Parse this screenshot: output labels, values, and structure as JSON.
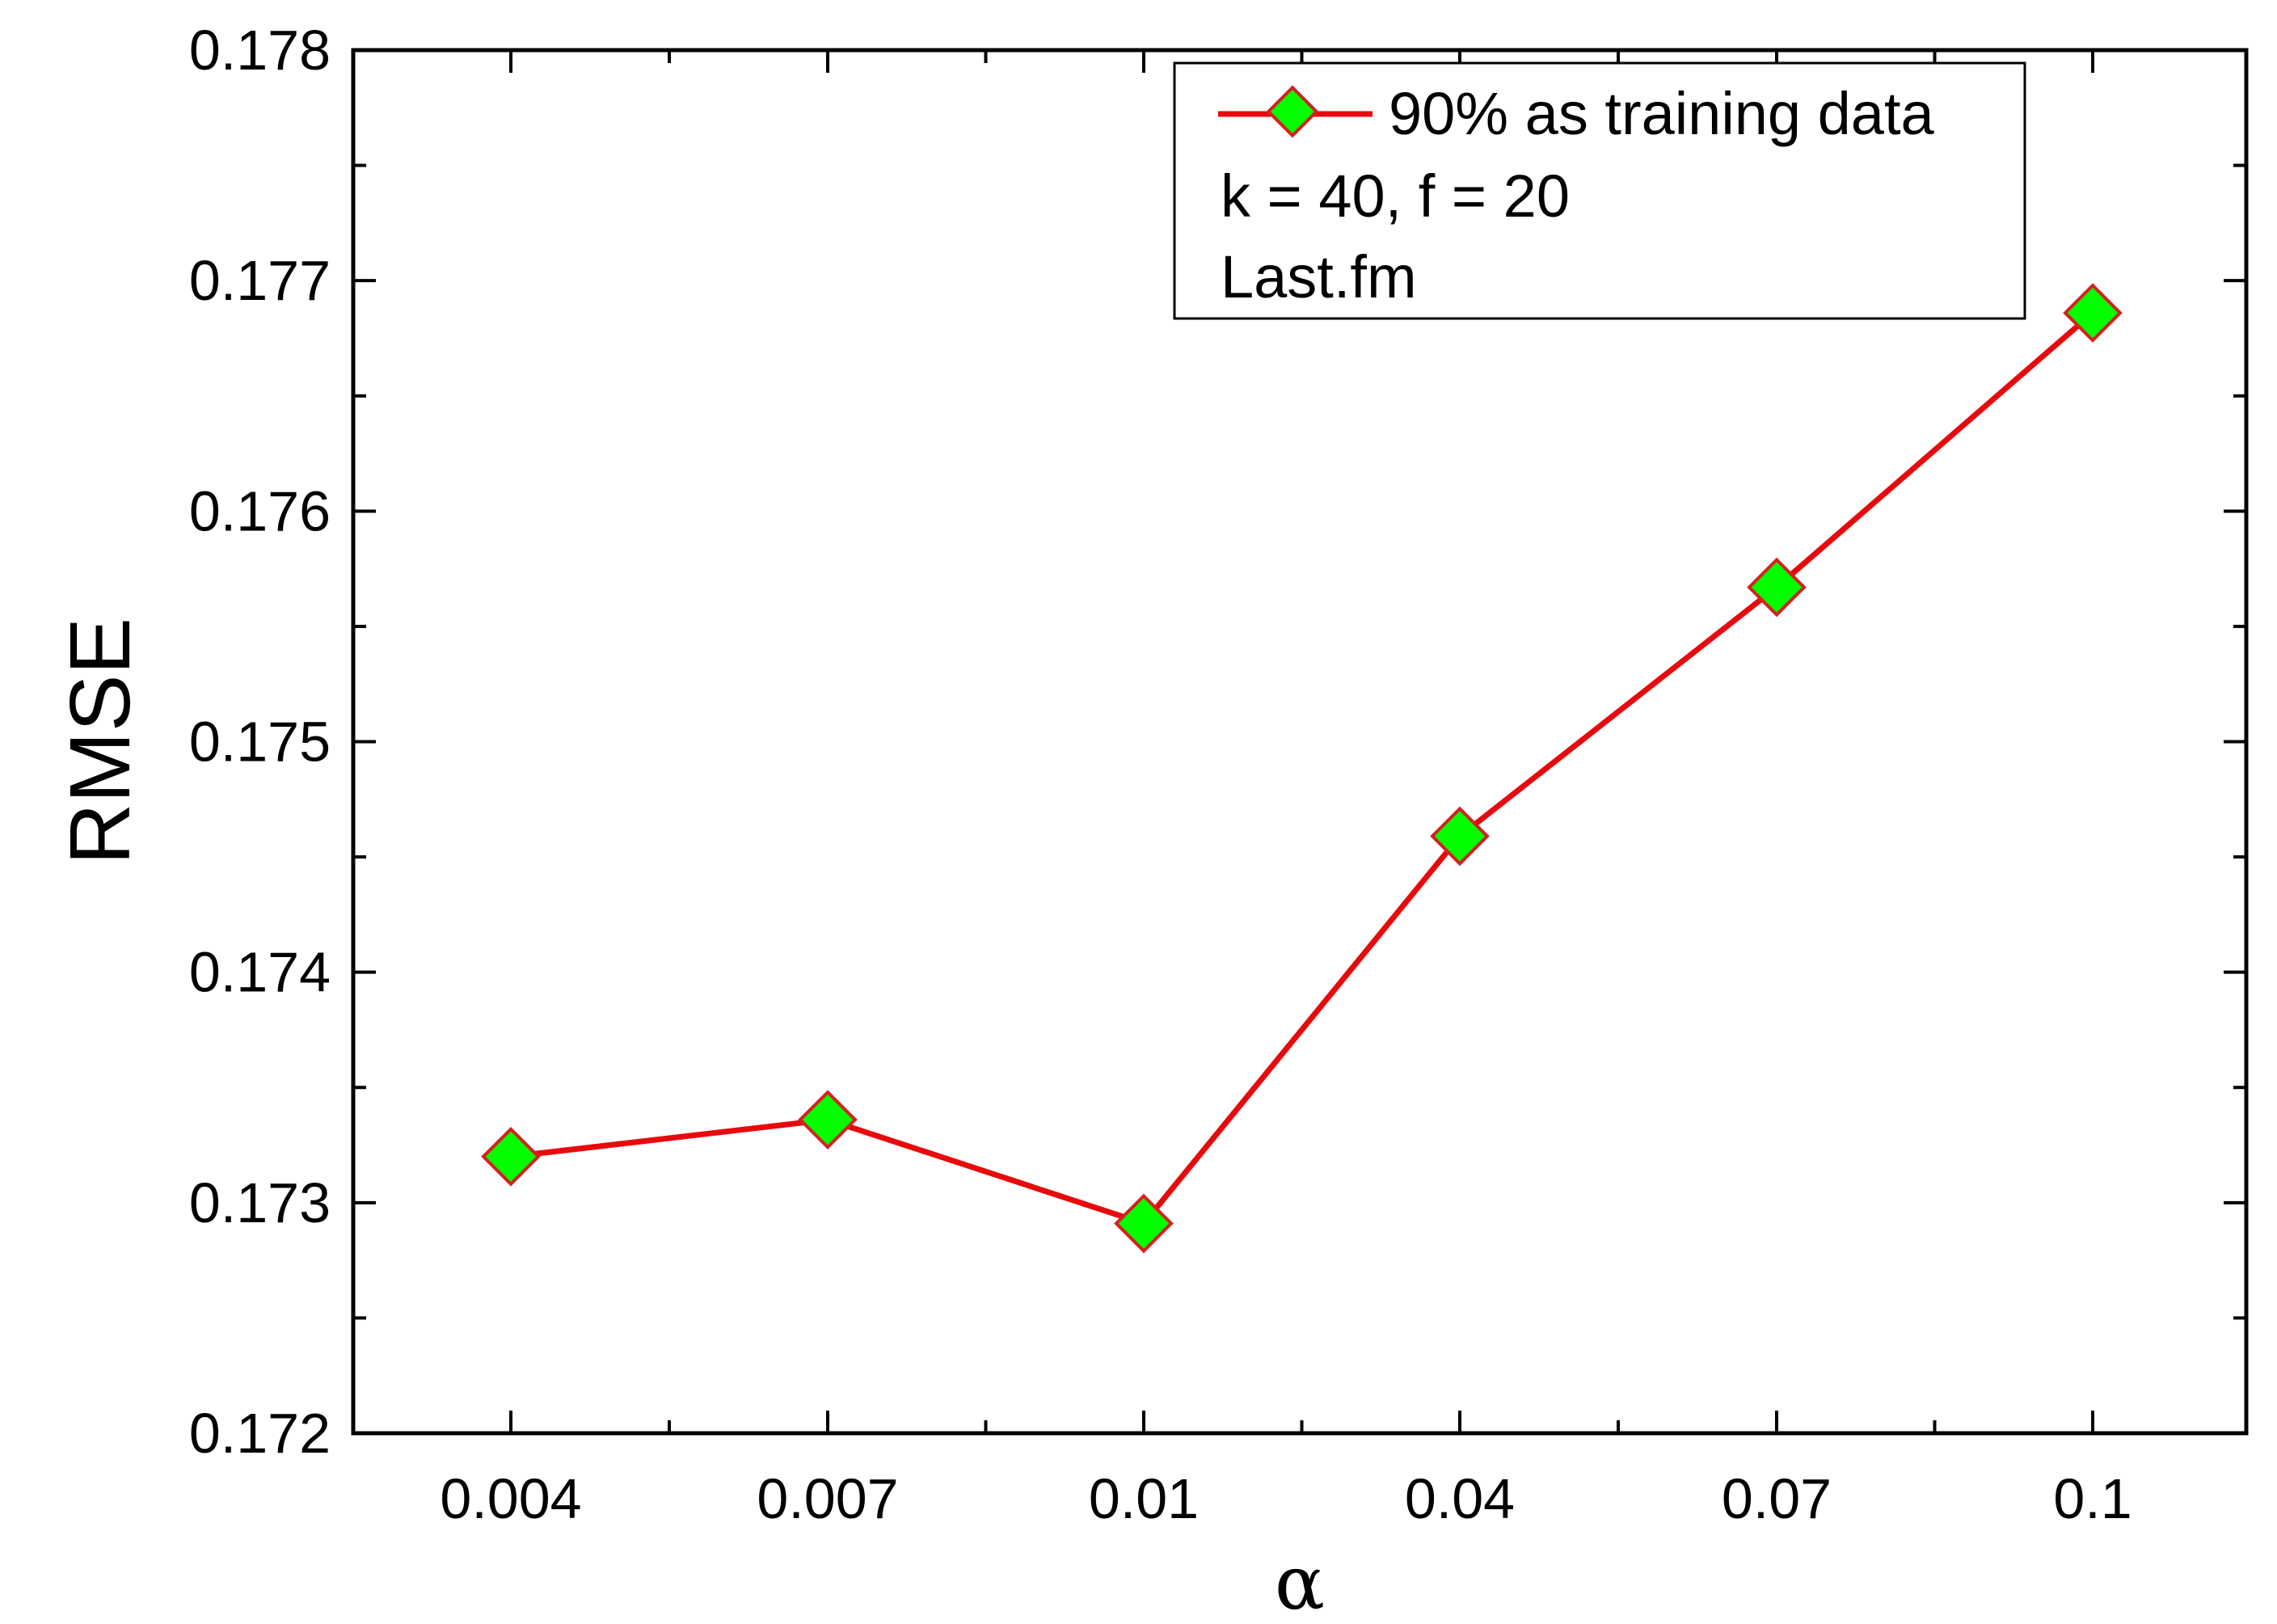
{
  "chart_data": {
    "type": "line",
    "x_categories": [
      "0.004",
      "0.007",
      "0.01",
      "0.04",
      "0.07",
      "0.1"
    ],
    "series": [
      {
        "name": "90% as training data",
        "values": [
          0.1732,
          0.17336,
          0.17291,
          0.17459,
          0.17567,
          0.17686
        ],
        "line_color": "#e8090d",
        "marker": "diamond",
        "marker_fill": "#00ff00",
        "marker_edge": "#d42020"
      }
    ],
    "legend": {
      "position": "top-right",
      "entries": [
        "90% as training data"
      ],
      "notes": [
        "k = 40, f = 20",
        "Last.fm"
      ]
    },
    "xlabel": "α",
    "ylabel": "RMSE",
    "ylim": [
      0.172,
      0.178
    ],
    "yticks": [
      "0.172",
      "0.173",
      "0.174",
      "0.175",
      "0.176",
      "0.177",
      "0.178"
    ],
    "y_minor_step": 0.0005,
    "grid": false
  }
}
